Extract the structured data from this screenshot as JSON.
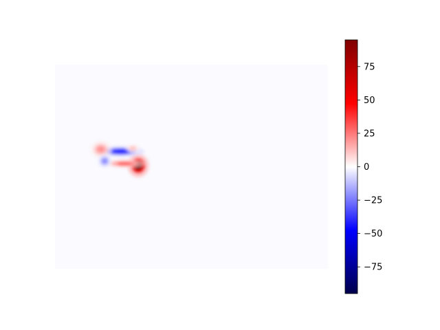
{
  "chart_data": {
    "type": "heatmap",
    "title": "",
    "xlabel": "",
    "ylabel": "",
    "axes_visible": false,
    "colormap": "seismic",
    "colorbar": {
      "vmin": -95,
      "vmax": 95,
      "ticks": [
        75,
        50,
        25,
        0,
        -25,
        -50,
        -75
      ],
      "tick_labels": [
        "75",
        "50",
        "25",
        "0",
        "−25",
        "−50",
        "−75"
      ],
      "placement": "right"
    },
    "data_extent": {
      "x": [
        0,
        1
      ],
      "y": [
        0,
        1
      ]
    },
    "background_value": -1,
    "blobs": [
      {
        "label": "strong-positive-peak",
        "x": 0.305,
        "y": 0.505,
        "rx": 0.018,
        "ry": 0.026,
        "value": 95
      },
      {
        "label": "positive-ridge",
        "x": 0.255,
        "y": 0.515,
        "rx": 0.035,
        "ry": 0.01,
        "value": 30
      },
      {
        "label": "negative-upper-band",
        "x": 0.24,
        "y": 0.575,
        "rx": 0.04,
        "ry": 0.012,
        "value": -45
      },
      {
        "label": "positive-left",
        "x": 0.168,
        "y": 0.585,
        "rx": 0.018,
        "ry": 0.02,
        "value": 20
      },
      {
        "label": "negative-left",
        "x": 0.182,
        "y": 0.528,
        "rx": 0.012,
        "ry": 0.016,
        "value": -22
      },
      {
        "label": "positive-upper-right",
        "x": 0.285,
        "y": 0.59,
        "rx": 0.012,
        "ry": 0.01,
        "value": 12
      }
    ]
  }
}
